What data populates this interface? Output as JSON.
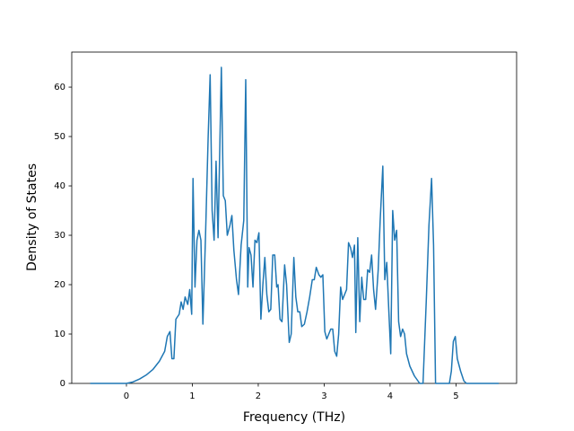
{
  "chart_data": {
    "type": "line",
    "x_label": "Frequency (THz)",
    "y_label": "Density of States",
    "xlim": [
      -0.83,
      5.92
    ],
    "ylim": [
      0,
      67.1
    ],
    "xticks": [
      0,
      1,
      2,
      3,
      4,
      5
    ],
    "yticks": [
      0,
      10,
      20,
      30,
      40,
      50,
      60
    ],
    "grid": false,
    "series": [
      {
        "color": "#1f77b4",
        "x": [
          -0.55,
          -0.2,
          0,
          0.1,
          0.2,
          0.3,
          0.4,
          0.5,
          0.58,
          0.62,
          0.66,
          0.69,
          0.72,
          0.75,
          0.8,
          0.83,
          0.86,
          0.89,
          0.93,
          0.96,
          0.99,
          1.01,
          1.04,
          1.07,
          1.1,
          1.13,
          1.16,
          1.2,
          1.24,
          1.27,
          1.3,
          1.33,
          1.36,
          1.39,
          1.44,
          1.47,
          1.5,
          1.53,
          1.57,
          1.6,
          1.63,
          1.67,
          1.7,
          1.74,
          1.78,
          1.81,
          1.84,
          1.86,
          1.89,
          1.92,
          1.95,
          1.98,
          2.01,
          2.04,
          2.07,
          2.1,
          2.13,
          2.16,
          2.19,
          2.22,
          2.25,
          2.28,
          2.3,
          2.33,
          2.36,
          2.4,
          2.43,
          2.47,
          2.5,
          2.54,
          2.57,
          2.6,
          2.63,
          2.66,
          2.7,
          2.74,
          2.78,
          2.82,
          2.85,
          2.88,
          2.92,
          2.95,
          2.98,
          3.01,
          3.04,
          3.07,
          3.1,
          3.13,
          3.16,
          3.19,
          3.22,
          3.25,
          3.28,
          3.31,
          3.34,
          3.37,
          3.4,
          3.43,
          3.46,
          3.48,
          3.51,
          3.54,
          3.57,
          3.6,
          3.63,
          3.66,
          3.69,
          3.72,
          3.75,
          3.78,
          3.82,
          3.85,
          3.89,
          3.92,
          3.95,
          3.98,
          4.01,
          4.04,
          4.07,
          4.1,
          4.13,
          4.16,
          4.19,
          4.22,
          4.25,
          4.3,
          4.37,
          4.45,
          4.5,
          4.55,
          4.59,
          4.63,
          4.66,
          4.69,
          4.9,
          4.93,
          4.96,
          4.99,
          5.02,
          5.07,
          5.12,
          5.16,
          5.65
        ],
        "values": [
          0,
          0,
          0,
          0.3,
          0.9,
          1.7,
          2.8,
          4.5,
          6.5,
          9.5,
          10.5,
          5,
          5,
          13,
          14,
          16.5,
          15,
          17.5,
          16,
          19,
          14,
          41.5,
          19.5,
          29,
          31,
          29,
          12,
          30,
          50,
          62.5,
          35,
          29,
          45,
          29.5,
          64,
          38,
          37,
          30,
          32,
          34,
          27,
          21,
          18,
          28,
          33,
          61.5,
          19.5,
          27.5,
          26,
          19.5,
          29,
          28.5,
          30.5,
          13,
          20,
          25.5,
          18,
          14.5,
          15,
          26,
          26,
          19.5,
          20,
          13,
          12.5,
          24,
          20,
          8.3,
          10,
          25.5,
          17.5,
          14.5,
          14.5,
          11.5,
          12,
          14.5,
          17.5,
          21,
          21,
          23.5,
          22,
          21.5,
          22,
          10.5,
          9,
          10,
          11,
          11,
          6.5,
          5.5,
          10,
          19.5,
          17,
          18,
          19,
          28.5,
          27.5,
          25.5,
          28,
          10.3,
          29.5,
          12.5,
          21.5,
          17,
          17,
          23,
          22.5,
          26,
          19,
          15,
          23,
          33,
          44,
          21,
          24.5,
          15,
          6,
          35,
          29,
          31,
          12.5,
          9.5,
          11,
          10,
          6,
          3.5,
          1.5,
          0,
          0,
          17,
          32,
          41.5,
          28,
          0,
          0,
          2.5,
          8.5,
          9.5,
          5,
          2.5,
          0.5,
          0,
          0
        ]
      }
    ]
  }
}
